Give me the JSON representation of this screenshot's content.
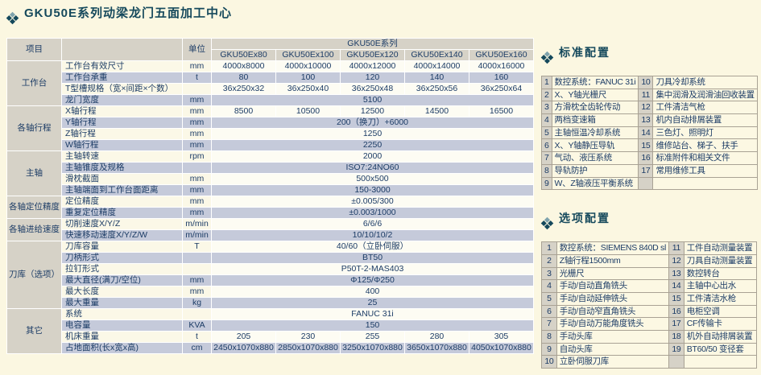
{
  "page": {
    "title": "GKU50E系列动梁龙门五面加工中心"
  },
  "colors": {
    "background": "#fbf7e1",
    "accent_teal": "#15495c",
    "header_gray": "#d6d2c7",
    "stripe_blue": "#c5cada",
    "stripe_cream": "#fbf8e7",
    "text_navy": "#1c3c66"
  },
  "icons": {
    "diamond": "checkered-diamond-bullet"
  },
  "spec": {
    "header": {
      "item": "项目",
      "unit": "单位",
      "series": "GKU50E系列"
    },
    "models": [
      "GKU50Ex80",
      "GKU50Ex100",
      "GKU50Ex120",
      "GKU50Ex140",
      "GKU50Ex160"
    ],
    "rows": [
      {
        "group": "工作台",
        "span": 4,
        "name": "工作台有效尺寸",
        "unit": "mm",
        "values": [
          "4000x8000",
          "4000x10000",
          "4000x12000",
          "4000x14000",
          "4000x16000"
        ]
      },
      {
        "name": "工作台承重",
        "unit": "t",
        "values": [
          "80",
          "100",
          "120",
          "140",
          "160"
        ]
      },
      {
        "name": "T型槽规格（宽×间距×个数）",
        "unit": "",
        "values": [
          "36x250x32",
          "36x250x40",
          "36x250x48",
          "36x250x56",
          "36x250x64"
        ]
      },
      {
        "name": "龙门宽度",
        "unit": "mm",
        "value": "5100"
      },
      {
        "group": "各轴行程",
        "span": 4,
        "name": "X轴行程",
        "unit": "mm",
        "values": [
          "8500",
          "10500",
          "12500",
          "14500",
          "16500"
        ]
      },
      {
        "name": "Y轴行程",
        "unit": "mm",
        "value": "200（换刀）+6000"
      },
      {
        "name": "Z轴行程",
        "unit": "mm",
        "value": "1250"
      },
      {
        "name": "W轴行程",
        "unit": "mm",
        "value": "2250"
      },
      {
        "group": "主轴",
        "span": 4,
        "name": "主轴转速",
        "unit": "rpm",
        "value": "2000"
      },
      {
        "name": "主轴锥度及规格",
        "unit": "",
        "value": "ISO7:24NO60"
      },
      {
        "name": "滑枕截面",
        "unit": "mm",
        "value": "500x500"
      },
      {
        "name": "主轴端面到工作台面距离",
        "unit": "mm",
        "value": "150-3000"
      },
      {
        "group": "各轴定位精度",
        "span": 2,
        "name": "定位精度",
        "unit": "mm",
        "value": "±0.005/300"
      },
      {
        "name": "重复定位精度",
        "unit": "mm",
        "value": "±0.003/1000"
      },
      {
        "group": "各轴进给速度",
        "span": 2,
        "name": "切削速度X/Y/Z",
        "unit": "m/min",
        "value": "6/6/6"
      },
      {
        "name": "快速移动速度X/Y/Z/W",
        "unit": "m/min",
        "value": "10/10/10/2"
      },
      {
        "group": "刀库（选项）",
        "span": 6,
        "name": "刀库容量",
        "unit": "T",
        "value": "40/60（立卧伺服）"
      },
      {
        "name": "刀柄形式",
        "unit": "",
        "value": "BT50"
      },
      {
        "name": "拉钉形式",
        "unit": "",
        "value": "P50T-2-MAS403"
      },
      {
        "name": "最大直径(满刀/空位)",
        "unit": "mm",
        "value": "Φ125/Φ250"
      },
      {
        "name": "最大长度",
        "unit": "mm",
        "value": "400"
      },
      {
        "name": "最大重量",
        "unit": "kg",
        "value": "25"
      },
      {
        "group": "其它",
        "span": 4,
        "name": "系统",
        "unit": "",
        "value": "FANUC 31i"
      },
      {
        "name": "电容量",
        "unit": "KVA",
        "value": "150"
      },
      {
        "name": "机床重量",
        "unit": "t",
        "values": [
          "205",
          "230",
          "255",
          "280",
          "305"
        ]
      },
      {
        "name": "占地面积(长x宽x高)",
        "unit": "cm",
        "values": [
          "2450x1070x880",
          "2850x1070x880",
          "3250x1070x880",
          "3650x1070x880",
          "4050x1070x880"
        ]
      }
    ]
  },
  "standard": {
    "title": "标准配置",
    "rows": [
      [
        "1",
        "数控系统：FANUC 31i",
        "10",
        "刀具冷却系统"
      ],
      [
        "2",
        "X、Y轴光栅尺",
        "11",
        "集中润滑及润滑油回收装置"
      ],
      [
        "3",
        "方滑枕全齿轮传动",
        "12",
        "工件清洁气枪"
      ],
      [
        "4",
        "两档变速箱",
        "13",
        "机内自动排屑装置"
      ],
      [
        "5",
        "主轴恒温冷却系统",
        "14",
        "三色灯、照明灯"
      ],
      [
        "6",
        "X、Y轴静压导轨",
        "15",
        "维修站台、梯子、扶手"
      ],
      [
        "7",
        "气动、液压系统",
        "16",
        "标准附件和相关文件"
      ],
      [
        "8",
        "导轨防护",
        "17",
        "常用维修工具"
      ],
      [
        "9",
        "W、Z轴液压平衡系统",
        "",
        ""
      ]
    ]
  },
  "optional": {
    "title": "选项配置",
    "rows": [
      [
        "1",
        "数控系统：SIEMENS 840D sl",
        "11",
        "工件自动测量装置"
      ],
      [
        "2",
        "Z轴行程1500mm",
        "12",
        "刀具自动测量装置"
      ],
      [
        "3",
        "光栅尺",
        "13",
        "数控转台"
      ],
      [
        "4",
        "手动/自动直角铣头",
        "14",
        "主轴中心出水"
      ],
      [
        "5",
        "手动/自动延伸铣头",
        "15",
        "工件清洁水枪"
      ],
      [
        "6",
        "手动/自动窄直角铣头",
        "16",
        "电柜空调"
      ],
      [
        "7",
        "手动/自动万能角度铣头",
        "17",
        "CF传输卡"
      ],
      [
        "8",
        "手动头库",
        "18",
        "机外自动排屑装置"
      ],
      [
        "9",
        "自动头库",
        "19",
        "BT60/50 变径套"
      ],
      [
        "10",
        "立卧伺服刀库",
        "",
        ""
      ]
    ]
  }
}
